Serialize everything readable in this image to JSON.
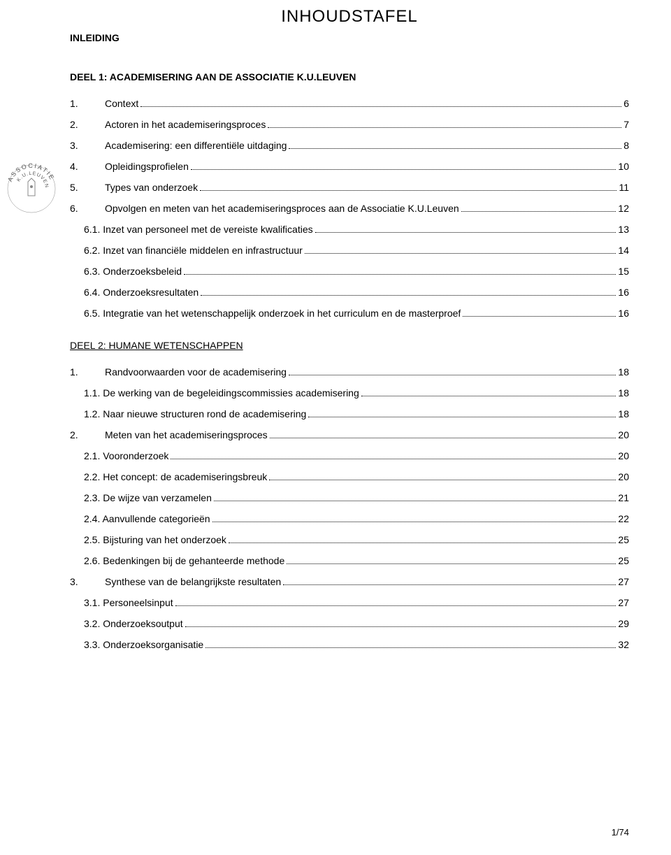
{
  "title": "INHOUDSTAFEL",
  "inleiding": "INLEIDING",
  "deel1": {
    "heading": "DEEL 1: ACADEMISERING AAN DE ASSOCIATIE K.U.LEUVEN",
    "items": [
      {
        "num": "1.",
        "label": "Context",
        "page": "6",
        "level": 0
      },
      {
        "num": "2.",
        "label": "Actoren in het academiseringsproces",
        "page": "7",
        "level": 0
      },
      {
        "num": "3.",
        "label": "Academisering: een differentiële uitdaging",
        "page": "8",
        "level": 0
      },
      {
        "num": "4.",
        "label": "Opleidingsprofielen",
        "page": "10",
        "level": 0
      },
      {
        "num": "5.",
        "label": "Types van onderzoek",
        "page": "11",
        "level": 0
      },
      {
        "num": "6.",
        "label": "Opvolgen en meten van het academiseringsproces aan de Associatie K.U.Leuven",
        "page": "12",
        "level": 0
      },
      {
        "num": "",
        "label": "6.1. Inzet van personeel met de vereiste kwalificaties",
        "page": "13",
        "level": 1
      },
      {
        "num": "",
        "label": "6.2. Inzet van financiële middelen en infrastructuur",
        "page": "14",
        "level": 1
      },
      {
        "num": "",
        "label": "6.3. Onderzoeksbeleid",
        "page": "15",
        "level": 1
      },
      {
        "num": "",
        "label": "6.4. Onderzoeksresultaten",
        "page": "16",
        "level": 1
      },
      {
        "num": "",
        "label": "6.5. Integratie van het wetenschappelijk onderzoek in het curriculum en de masterproef",
        "page": "16",
        "level": 1
      }
    ]
  },
  "deel2": {
    "heading": "DEEL 2: HUMANE WETENSCHAPPEN",
    "items": [
      {
        "num": "1.",
        "label": "Randvoorwaarden voor de academisering",
        "page": "18",
        "level": 0
      },
      {
        "num": "",
        "label": "1.1. De werking van de begeleidingscommissies academisering",
        "page": "18",
        "level": 1
      },
      {
        "num": "",
        "label": "1.2. Naar nieuwe structuren rond de academisering",
        "page": "18",
        "level": 1
      },
      {
        "num": "2.",
        "label": "Meten van het academiseringsproces",
        "page": "20",
        "level": 0
      },
      {
        "num": "",
        "label": "2.1. Vooronderzoek",
        "page": "20",
        "level": 1
      },
      {
        "num": "",
        "label": "2.2. Het concept: de academiseringsbreuk",
        "page": "20",
        "level": 1
      },
      {
        "num": "",
        "label": "2.3. De wijze van verzamelen",
        "page": "21",
        "level": 1
      },
      {
        "num": "",
        "label": "2.4. Aanvullende categorieën",
        "page": "22",
        "level": 1
      },
      {
        "num": "",
        "label": "2.5. Bijsturing van het onderzoek",
        "page": "25",
        "level": 1
      },
      {
        "num": "",
        "label": "2.6. Bedenkingen bij de gehanteerde methode",
        "page": "25",
        "level": 1
      },
      {
        "num": "3.",
        "label": "Synthese van de belangrijkste resultaten",
        "page": "27",
        "level": 0
      },
      {
        "num": "",
        "label": "3.1. Personeelsinput",
        "page": "27",
        "level": 1
      },
      {
        "num": "",
        "label": "3.2. Onderzoeksoutput",
        "page": "29",
        "level": 1
      },
      {
        "num": "",
        "label": "3.3. Onderzoeksorganisatie",
        "page": "32",
        "level": 1
      }
    ]
  },
  "footer": "1/74",
  "logo": {
    "outer_text": "ASSOCIATIE",
    "inner_text": "K.U.LEUVEN"
  }
}
